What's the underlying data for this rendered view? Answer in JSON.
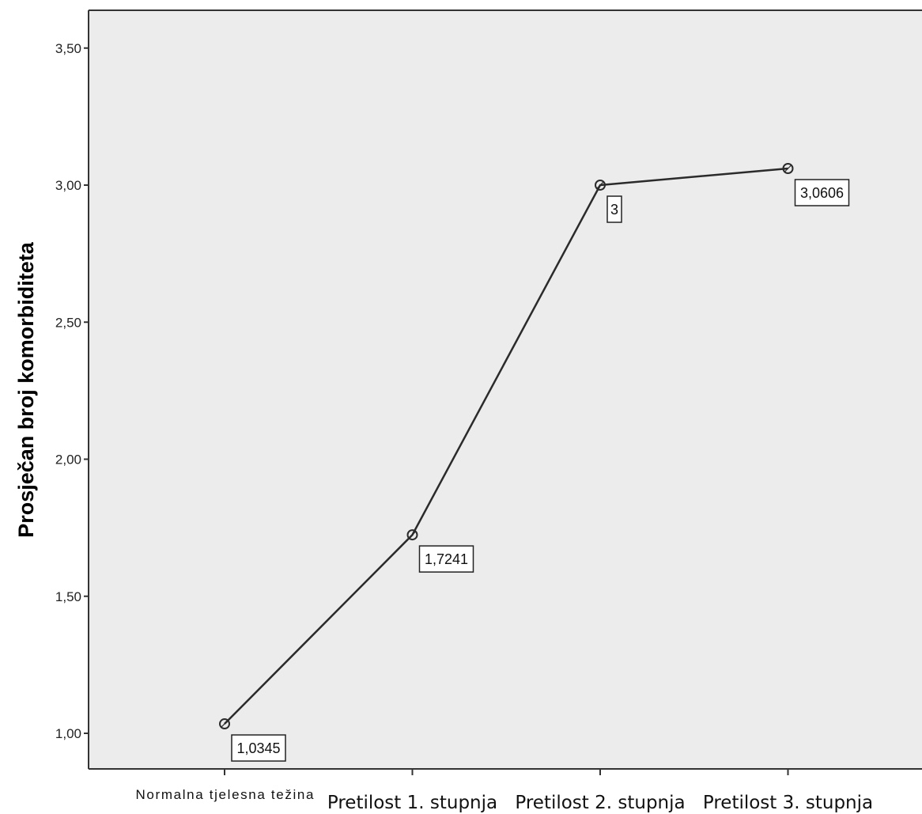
{
  "chart_data": {
    "type": "line",
    "title": "",
    "xlabel": "",
    "ylabel": "Prosječan broj komorbiditeta",
    "categories": [
      "Normalna tjelesna težina",
      "Pretilost 1. stupnja",
      "Pretilost 2. stupnja",
      "Pretilost 3. stupnja"
    ],
    "values": [
      1.0345,
      1.7241,
      3,
      3.0606
    ],
    "data_labels": [
      "1,0345",
      "1,7241",
      "3",
      "3,0606"
    ],
    "ylim": [
      0.87,
      3.72
    ],
    "yticks": [
      1.0,
      1.5,
      2.0,
      2.5,
      3.0,
      3.5
    ],
    "ytick_labels": [
      "1,00",
      "1,50",
      "2,00",
      "2,50",
      "3,00",
      "3,50"
    ],
    "grid": false,
    "legend": "none",
    "colors": {
      "plot_background": "#ececec",
      "line": "#2b2b2b",
      "axis": "#333333"
    }
  }
}
